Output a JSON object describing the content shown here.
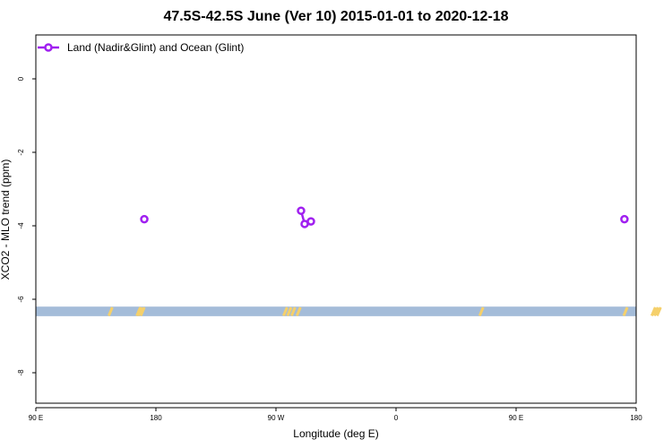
{
  "chart_data": {
    "type": "line",
    "title": "47.5S-42.5S June (Ver 10)   2015-01-01 to 2020-12-18",
    "xlabel": "Longitude (deg E)",
    "ylabel": "XCO2 - MLO trend (ppm)",
    "xlim": [
      90,
      540
    ],
    "ylim": [
      -8.85,
      1.2
    ],
    "x_ticks": [
      {
        "value": 90,
        "label": "90 E"
      },
      {
        "value": 180,
        "label": "180"
      },
      {
        "value": 270,
        "label": "90 W"
      },
      {
        "value": 360,
        "label": "0"
      },
      {
        "value": 450,
        "label": "90 E"
      },
      {
        "value": 540,
        "label": "180"
      }
    ],
    "y_ticks": [
      {
        "value": 0,
        "label": "0"
      },
      {
        "value": -2,
        "label": "-2"
      },
      {
        "value": -4,
        "label": "-4"
      },
      {
        "value": -6,
        "label": "-6"
      },
      {
        "value": -8,
        "label": "-8"
      }
    ],
    "legend": {
      "position": "top-left"
    },
    "series": [
      {
        "name": "Land (Nadir&Glint) and Ocean (Glint)",
        "color": "#a020f0",
        "segments": [
          [
            {
              "x": 171.3,
              "y": -3.82
            }
          ],
          [
            {
              "x": 288.8,
              "y": -3.59
            },
            {
              "x": 291.5,
              "y": -3.95
            },
            {
              "x": 296.2,
              "y": -3.88
            }
          ],
          [
            {
              "x": 531.2,
              "y": -3.82
            }
          ]
        ]
      }
    ],
    "land_band": {
      "color": "#a4bcd9",
      "y_range": [
        -6.46,
        -6.2
      ]
    },
    "land_markers": {
      "color": "#f5d06b",
      "x": [
        146,
        167,
        168,
        170,
        277,
        280,
        283,
        287,
        424,
        532,
        553,
        555,
        557
      ]
    }
  }
}
